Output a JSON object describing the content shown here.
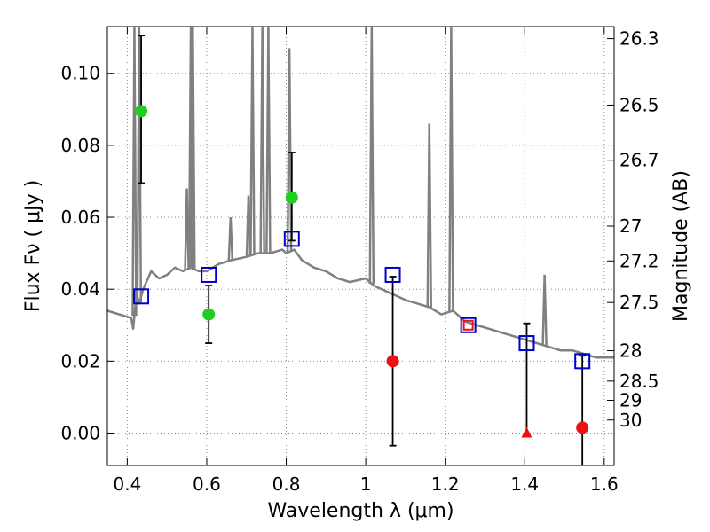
{
  "chart_data": {
    "type": "scatter",
    "xlabel": "Wavelength  λ (μm)",
    "ylabel": "Flux  Fν  ( μJy )",
    "ylabel_right": "Magnitude (AB)",
    "xlim": [
      0.35,
      1.625
    ],
    "ylim": [
      -0.009,
      0.113
    ],
    "grid": true,
    "x_ticks": [
      0.4,
      0.6,
      0.8,
      1.0,
      1.2,
      1.4,
      1.6
    ],
    "x_tick_labels": [
      "0.4",
      "0.6",
      "0.8",
      "1",
      "1.2",
      "1.4",
      "1.6"
    ],
    "y_ticks": [
      0.0,
      0.02,
      0.04,
      0.06,
      0.08,
      0.1
    ],
    "y_tick_labels": [
      "0.00",
      "0.02",
      "0.04",
      "0.06",
      "0.08",
      "0.10"
    ],
    "magnitude_ticks": [
      26.3,
      26.5,
      26.7,
      27,
      27.2,
      27.5,
      28,
      28.5,
      29,
      30
    ],
    "magnitude_tick_labels": [
      "26.3",
      "26.5",
      "26.7",
      "27",
      "27.2",
      "27.5",
      "28",
      "28.5",
      "29",
      "30"
    ],
    "colors": {
      "model": "#808080",
      "model_points": "#0000cc",
      "optical": "#22cc22",
      "nir": "#ee1111",
      "errorbar": "#000000",
      "grid": "#888888"
    },
    "series": [
      {
        "role": "model_spectrum",
        "x": [
          0.35,
          0.38,
          0.41,
          0.415,
          0.42,
          0.425,
          0.43,
          0.44,
          0.46,
          0.48,
          0.5,
          0.52,
          0.54,
          0.56,
          0.58,
          0.6,
          0.63,
          0.66,
          0.7,
          0.73,
          0.76,
          0.79,
          0.8,
          0.82,
          0.84,
          0.87,
          0.9,
          0.93,
          0.96,
          1.0,
          1.02,
          1.04,
          1.06,
          1.08,
          1.1,
          1.13,
          1.16,
          1.19,
          1.22,
          1.25,
          1.28,
          1.31,
          1.34,
          1.37,
          1.4,
          1.43,
          1.46,
          1.49,
          1.52,
          1.55,
          1.58,
          1.61,
          1.625
        ],
        "y": [
          0.034,
          0.033,
          0.032,
          0.029,
          0.035,
          0.038,
          0.036,
          0.04,
          0.045,
          0.043,
          0.044,
          0.046,
          0.045,
          0.046,
          0.045,
          0.045,
          0.047,
          0.048,
          0.049,
          0.05,
          0.05,
          0.051,
          0.05,
          0.051,
          0.048,
          0.046,
          0.045,
          0.043,
          0.042,
          0.043,
          0.041,
          0.04,
          0.039,
          0.038,
          0.037,
          0.036,
          0.035,
          0.033,
          0.034,
          0.031,
          0.03,
          0.029,
          0.028,
          0.027,
          0.026,
          0.025,
          0.024,
          0.023,
          0.023,
          0.022,
          0.021,
          0.021,
          0.021
        ]
      },
      {
        "role": "emission_lines",
        "x": [
          0.418,
          0.43,
          0.55,
          0.56,
          0.565,
          0.66,
          0.705,
          0.715,
          0.74,
          0.755,
          0.808,
          1.015,
          1.16,
          1.215,
          1.45
        ],
        "y": [
          0.113,
          0.113,
          0.068,
          0.113,
          0.113,
          0.06,
          0.066,
          0.113,
          0.113,
          0.113,
          0.107,
          0.113,
          0.086,
          0.113,
          0.044
        ]
      },
      {
        "role": "model_photometry",
        "x": [
          0.435,
          0.605,
          0.814,
          1.068,
          1.258,
          1.405,
          1.545
        ],
        "y": [
          0.038,
          0.044,
          0.054,
          0.044,
          0.03,
          0.025,
          0.02
        ]
      },
      {
        "role": "observed_optical",
        "x": [
          0.435,
          0.605,
          0.814
        ],
        "y": [
          0.0895,
          0.033,
          0.0655
        ],
        "yerr_low": [
          0.0695,
          0.025,
          0.0535
        ],
        "yerr_high": [
          0.1105,
          0.041,
          0.078
        ]
      },
      {
        "role": "observed_nir",
        "x": [
          1.068,
          1.545
        ],
        "y": [
          0.02,
          0.0015
        ],
        "yerr_low": [
          -0.0035,
          -0.009
        ],
        "yerr_high": [
          0.0435,
          0.0215
        ]
      },
      {
        "role": "upper_limit_nir",
        "x": [
          1.405
        ],
        "y": [
          0.0
        ],
        "yerr_low": [
          -0.0005
        ],
        "yerr_high": [
          0.0305
        ]
      },
      {
        "role": "open_red_square",
        "x": [
          1.258
        ],
        "y": [
          0.03
        ]
      }
    ]
  }
}
